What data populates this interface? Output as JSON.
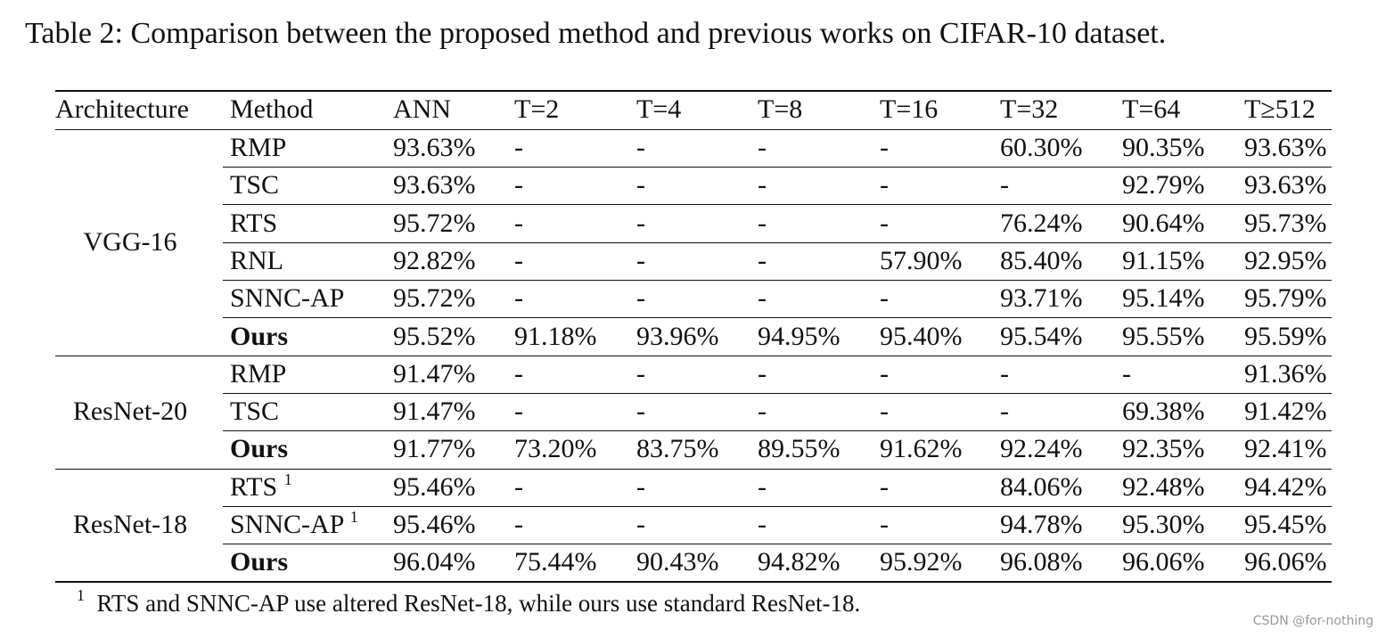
{
  "caption": "Table 2: Comparison between the proposed method and previous works on CIFAR-10 dataset.",
  "table": {
    "header": [
      "Architecture",
      "Method",
      "ANN",
      "T=2",
      "T=4",
      "T=8",
      "T=16",
      "T=32",
      "T=64",
      "T≥512"
    ],
    "groups": [
      {
        "architecture": "VGG-16",
        "rows": [
          {
            "method": "RMP",
            "cells": [
              "93.63%",
              "-",
              "-",
              "-",
              "-",
              "60.30%",
              "90.35%",
              "93.63%"
            ]
          },
          {
            "method": "TSC",
            "cells": [
              "93.63%",
              "-",
              "-",
              "-",
              "-",
              "-",
              "92.79%",
              "93.63%"
            ]
          },
          {
            "method": "RTS",
            "cells": [
              "95.72%",
              "-",
              "-",
              "-",
              "-",
              "76.24%",
              "90.64%",
              "95.73%"
            ]
          },
          {
            "method": "RNL",
            "cells": [
              "92.82%",
              "-",
              "-",
              "-",
              "57.90%",
              "85.40%",
              "91.15%",
              "92.95%"
            ]
          },
          {
            "method": "SNNC-AP",
            "cells": [
              "95.72%",
              "-",
              "-",
              "-",
              "-",
              "93.71%",
              "95.14%",
              "95.79%"
            ]
          },
          {
            "method": "Ours",
            "bold": true,
            "cells": [
              "95.52%",
              "91.18%",
              "93.96%",
              "94.95%",
              "95.40%",
              "95.54%",
              "95.55%",
              "95.59%"
            ]
          }
        ]
      },
      {
        "architecture": "ResNet-20",
        "rows": [
          {
            "method": "RMP",
            "cells": [
              "91.47%",
              "-",
              "-",
              "-",
              "-",
              "-",
              "-",
              "91.36%"
            ]
          },
          {
            "method": "TSC",
            "cells": [
              "91.47%",
              "-",
              "-",
              "-",
              "-",
              "-",
              "69.38%",
              "91.42%"
            ]
          },
          {
            "method": "Ours",
            "bold": true,
            "cells": [
              "91.77%",
              "73.20%",
              "83.75%",
              "89.55%",
              "91.62%",
              "92.24%",
              "92.35%",
              "92.41%"
            ]
          }
        ]
      },
      {
        "architecture": "ResNet-18",
        "rows": [
          {
            "method": "RTS",
            "note": "1",
            "cells": [
              "95.46%",
              "-",
              "-",
              "-",
              "-",
              "84.06%",
              "92.48%",
              "94.42%"
            ]
          },
          {
            "method": "SNNC-AP",
            "note": "1",
            "cells": [
              "95.46%",
              "-",
              "-",
              "-",
              "-",
              "94.78%",
              "95.30%",
              "95.45%"
            ]
          },
          {
            "method": "Ours",
            "bold": true,
            "cells": [
              "96.04%",
              "75.44%",
              "90.43%",
              "94.82%",
              "95.92%",
              "96.08%",
              "96.06%",
              "96.06%"
            ]
          }
        ]
      }
    ]
  },
  "footnote": {
    "mark": "1",
    "text": "RTS and SNNC-AP use altered ResNet-18, while ours use standard ResNet-18."
  },
  "watermark": "CSDN @for-nothing"
}
